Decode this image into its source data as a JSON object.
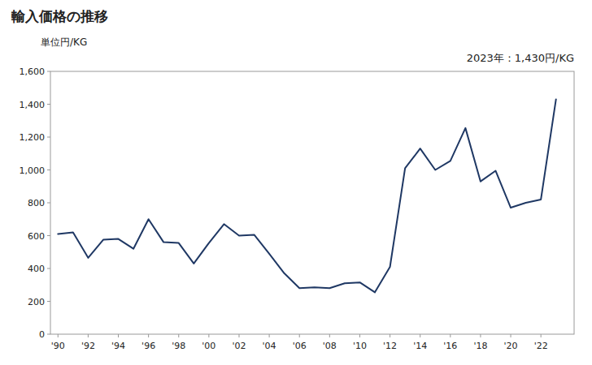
{
  "chart_data": {
    "type": "line",
    "title": "輸入価格の推移",
    "ylabel": "単位円/KG",
    "annotation": "2023年：1,430円/KG",
    "x": [
      1990,
      1991,
      1992,
      1993,
      1994,
      1995,
      1996,
      1997,
      1998,
      1999,
      2000,
      2001,
      2002,
      2003,
      2004,
      2005,
      2006,
      2007,
      2008,
      2009,
      2010,
      2011,
      2012,
      2013,
      2014,
      2015,
      2016,
      2017,
      2018,
      2019,
      2020,
      2021,
      2022,
      2023
    ],
    "values": [
      610,
      620,
      465,
      575,
      580,
      520,
      700,
      560,
      555,
      430,
      555,
      670,
      600,
      605,
      490,
      370,
      280,
      285,
      280,
      310,
      315,
      255,
      410,
      1010,
      1130,
      1000,
      1055,
      1255,
      930,
      995,
      770,
      800,
      820,
      1430
    ],
    "color": "#1f3864",
    "xlim": [
      1989.5,
      2024.2
    ],
    "xticks": [
      {
        "value": 1990,
        "label": "'90"
      },
      {
        "value": 1992,
        "label": "'92"
      },
      {
        "value": 1994,
        "label": "'94"
      },
      {
        "value": 1996,
        "label": "'96"
      },
      {
        "value": 1998,
        "label": "'98"
      },
      {
        "value": 2000,
        "label": "'00"
      },
      {
        "value": 2002,
        "label": "'02"
      },
      {
        "value": 2004,
        "label": "'04"
      },
      {
        "value": 2006,
        "label": "'06"
      },
      {
        "value": 2008,
        "label": "'08"
      },
      {
        "value": 2010,
        "label": "'10"
      },
      {
        "value": 2012,
        "label": "'12"
      },
      {
        "value": 2014,
        "label": "'14"
      },
      {
        "value": 2016,
        "label": "'16"
      },
      {
        "value": 2018,
        "label": "'18"
      },
      {
        "value": 2020,
        "label": "'20"
      },
      {
        "value": 2022,
        "label": "'22"
      }
    ],
    "ylim": [
      0,
      1600
    ],
    "yticks": [
      0,
      200,
      400,
      600,
      800,
      {
        "value": 1000,
        "label": "1,000"
      },
      {
        "value": 1200,
        "label": "1,200"
      },
      {
        "value": 1400,
        "label": "1,400"
      },
      {
        "value": 1600,
        "label": "1,600"
      }
    ],
    "grid": false
  }
}
